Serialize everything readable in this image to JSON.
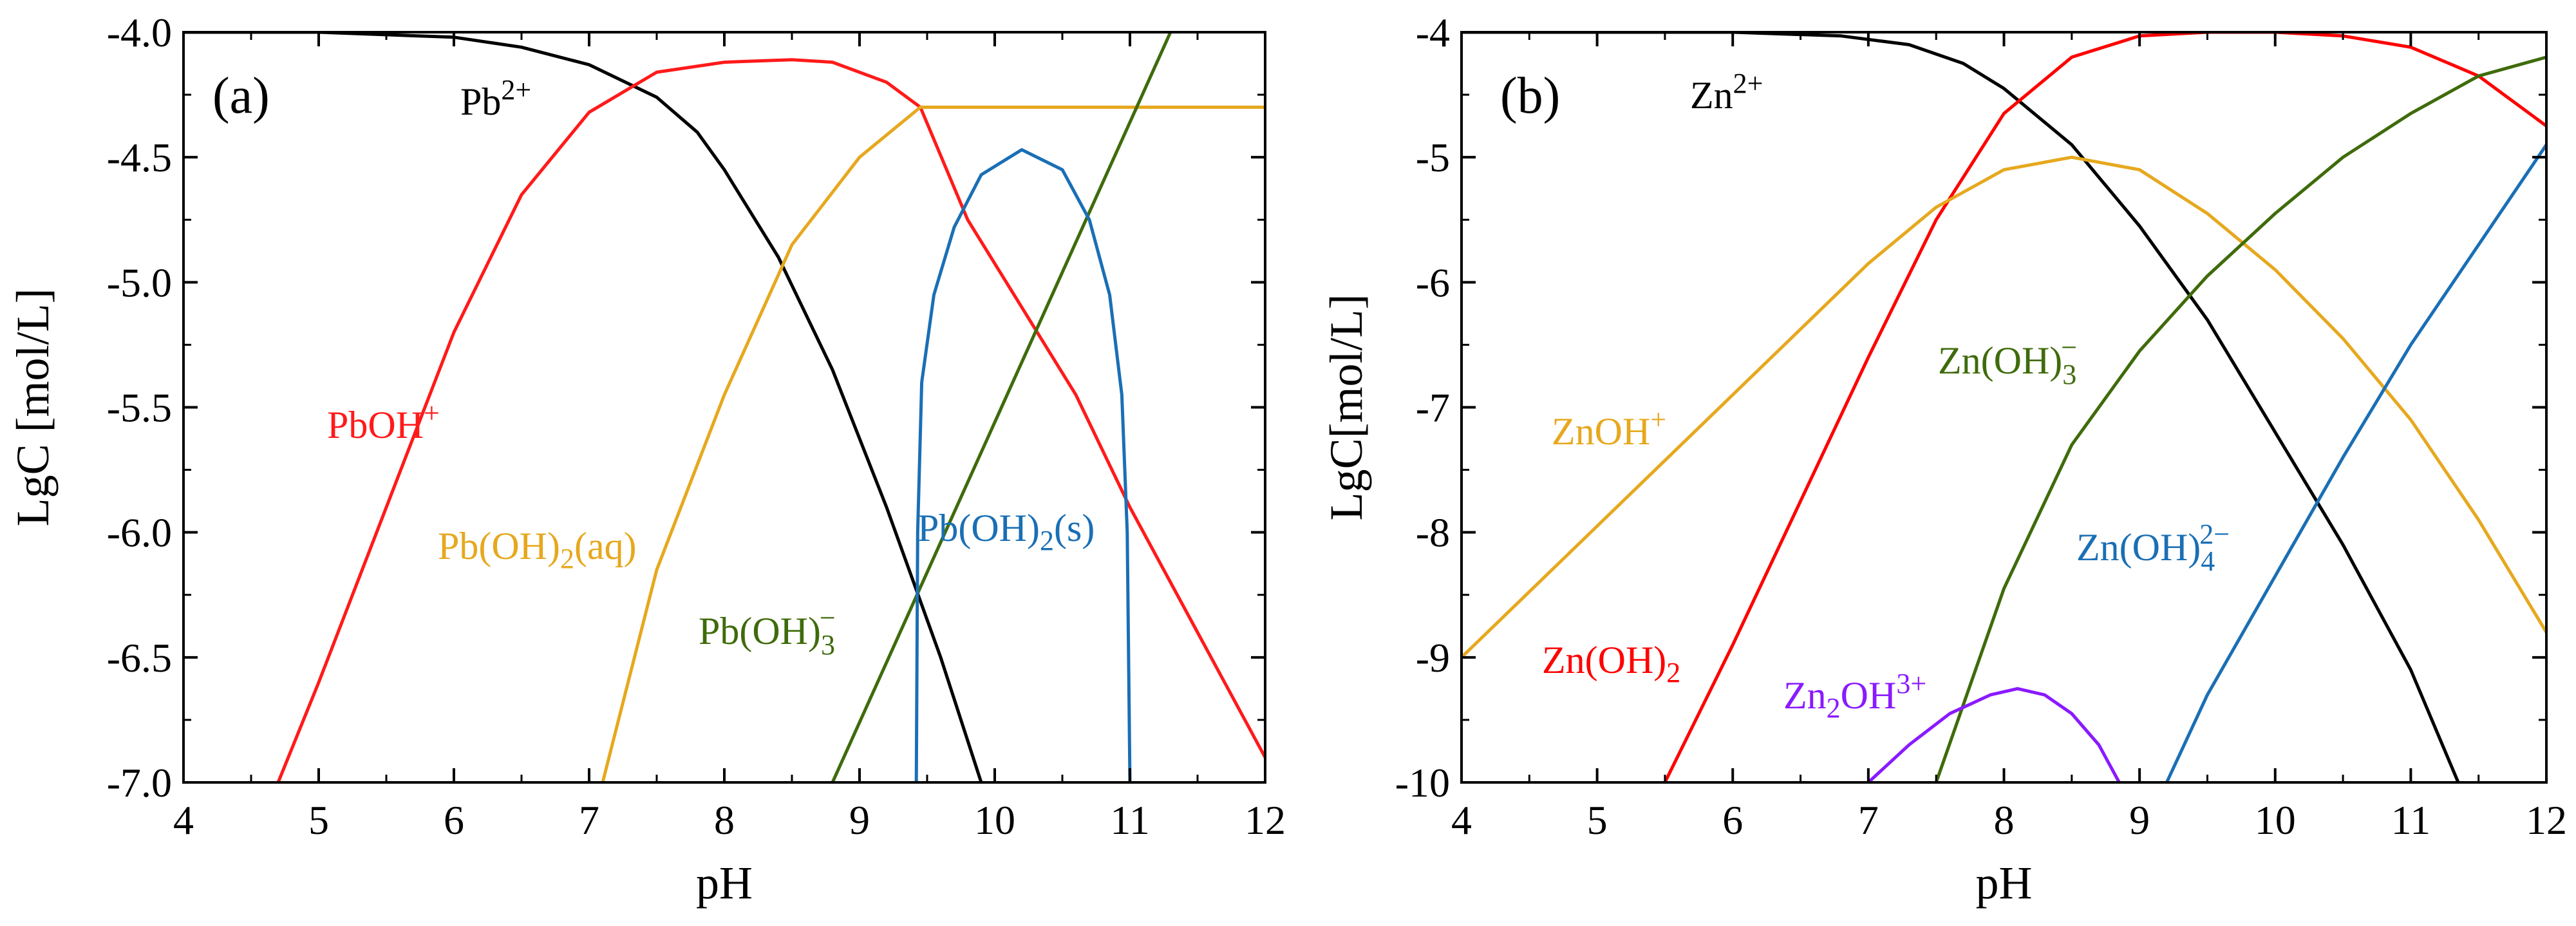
{
  "chart_data": [
    {
      "type": "line",
      "panel_label": "(a)",
      "xlabel": "pH",
      "ylabel": "LgC [mol/L]",
      "xlim": [
        4,
        12
      ],
      "ylim": [
        -7.0,
        -4.0
      ],
      "xticks": [
        4,
        5,
        6,
        7,
        8,
        9,
        10,
        11,
        12
      ],
      "xtick_labels": [
        "4",
        "5",
        "6",
        "7",
        "8",
        "9",
        "10",
        "11",
        "12"
      ],
      "yticks": [
        -4.0,
        -4.5,
        -5.0,
        -5.5,
        -6.0,
        -6.5,
        -7.0
      ],
      "ytick_labels": [
        "-4.0",
        "-4.5",
        "-5.0",
        "-5.5",
        "-6.0",
        "-6.5",
        "-7.0"
      ],
      "series": [
        {
          "key": "Pb2+",
          "name": "Pb²⁺",
          "label_parts": [
            "Pb",
            "2+"
          ],
          "label_style": "sup",
          "color": "#000000",
          "points": [
            [
              4.0,
              -4.0
            ],
            [
              5.0,
              -4.0
            ],
            [
              6.0,
              -4.02
            ],
            [
              6.5,
              -4.06
            ],
            [
              7.0,
              -4.13
            ],
            [
              7.5,
              -4.26
            ],
            [
              7.8,
              -4.4
            ],
            [
              8.0,
              -4.55
            ],
            [
              8.4,
              -4.9
            ],
            [
              8.8,
              -5.35
            ],
            [
              9.2,
              -5.9
            ],
            [
              9.6,
              -6.5
            ],
            [
              9.9,
              -7.0
            ]
          ]
        },
        {
          "key": "PbOH+",
          "name": "PbOH⁺",
          "label_parts": [
            "PbOH",
            "+"
          ],
          "label_style": "sup",
          "color": "#ff1a1a",
          "points": [
            [
              4.7,
              -7.0
            ],
            [
              5.0,
              -6.6
            ],
            [
              5.5,
              -5.9
            ],
            [
              6.0,
              -5.2
            ],
            [
              6.5,
              -4.65
            ],
            [
              7.0,
              -4.32
            ],
            [
              7.5,
              -4.16
            ],
            [
              8.0,
              -4.12
            ],
            [
              8.5,
              -4.11
            ],
            [
              8.8,
              -4.12
            ],
            [
              9.2,
              -4.2
            ],
            [
              9.45,
              -4.3
            ],
            [
              9.8,
              -4.75
            ],
            [
              10.2,
              -5.1
            ],
            [
              10.6,
              -5.45
            ],
            [
              11.0,
              -5.9
            ],
            [
              11.5,
              -6.4
            ],
            [
              12.0,
              -6.9
            ]
          ]
        },
        {
          "key": "Pb(OH)2(aq)",
          "name": "Pb(OH)₂(aq)",
          "label_parts": [
            "Pb(OH)",
            "2",
            "(aq)"
          ],
          "label_style": "sub-mid",
          "color": "#e6a81e",
          "points": [
            [
              7.1,
              -7.0
            ],
            [
              7.5,
              -6.15
            ],
            [
              8.0,
              -5.45
            ],
            [
              8.5,
              -4.85
            ],
            [
              9.0,
              -4.5
            ],
            [
              9.45,
              -4.3
            ],
            [
              10.0,
              -4.3
            ],
            [
              11.0,
              -4.3
            ],
            [
              12.0,
              -4.3
            ]
          ]
        },
        {
          "key": "Pb(OH)3-",
          "name": "Pb(OH)₃⁻",
          "label_parts": [
            "Pb(OH)",
            "3",
            "−"
          ],
          "label_style": "subsup",
          "color": "#3f6b0b",
          "points": [
            [
              8.8,
              -7.0
            ],
            [
              11.3,
              -4.0
            ]
          ]
        },
        {
          "key": "Pb(OH)2(s)",
          "name": "Pb(OH)₂(s)",
          "label_parts": [
            "Pb(OH)",
            "2",
            "(s)"
          ],
          "label_style": "sub-mid",
          "color": "#1a6fb5",
          "points": [
            [
              9.42,
              -7.0
            ],
            [
              9.43,
              -6.0
            ],
            [
              9.46,
              -5.4
            ],
            [
              9.55,
              -5.05
            ],
            [
              9.7,
              -4.78
            ],
            [
              9.9,
              -4.57
            ],
            [
              10.2,
              -4.47
            ],
            [
              10.5,
              -4.55
            ],
            [
              10.7,
              -4.75
            ],
            [
              10.85,
              -5.05
            ],
            [
              10.94,
              -5.45
            ],
            [
              10.98,
              -6.0
            ],
            [
              11.0,
              -7.0
            ]
          ]
        }
      ]
    },
    {
      "type": "line",
      "panel_label": "(b)",
      "xlabel": "pH",
      "ylabel": "LgC[mol/L]",
      "xlim": [
        4,
        12
      ],
      "ylim": [
        -10,
        -4
      ],
      "xticks": [
        4,
        5,
        6,
        7,
        8,
        9,
        10,
        11,
        12
      ],
      "xtick_labels": [
        "4",
        "5",
        "6",
        "7",
        "8",
        "9",
        "10",
        "11",
        "12"
      ],
      "yticks": [
        -4,
        -5,
        -6,
        -7,
        -8,
        -9,
        -10
      ],
      "ytick_labels": [
        "-4",
        "-5",
        "-6",
        "-7",
        "-8",
        "-9",
        "-10"
      ],
      "series": [
        {
          "key": "Zn2+",
          "name": "Zn²⁺",
          "label_parts": [
            "Zn",
            "2+"
          ],
          "label_style": "sup",
          "color": "#000000",
          "points": [
            [
              4.0,
              -4.0
            ],
            [
              6.0,
              -4.0
            ],
            [
              6.8,
              -4.03
            ],
            [
              7.3,
              -4.1
            ],
            [
              7.7,
              -4.25
            ],
            [
              8.0,
              -4.45
            ],
            [
              8.5,
              -4.9
            ],
            [
              9.0,
              -5.55
            ],
            [
              9.5,
              -6.3
            ],
            [
              10.0,
              -7.2
            ],
            [
              10.5,
              -8.1
            ],
            [
              11.0,
              -9.1
            ],
            [
              11.35,
              -10.0
            ]
          ]
        },
        {
          "key": "Zn(OH)2",
          "name": "Zn(OH)₂",
          "label_parts": [
            "Zn(OH)",
            "2"
          ],
          "label_style": "sub",
          "color": "#ff0000",
          "points": [
            [
              5.5,
              -10.0
            ],
            [
              6.0,
              -8.9
            ],
            [
              6.5,
              -7.75
            ],
            [
              7.0,
              -6.6
            ],
            [
              7.5,
              -5.5
            ],
            [
              8.0,
              -4.65
            ],
            [
              8.5,
              -4.2
            ],
            [
              9.0,
              -4.03
            ],
            [
              9.5,
              -4.0
            ],
            [
              10.0,
              -4.0
            ],
            [
              10.5,
              -4.03
            ],
            [
              11.0,
              -4.12
            ],
            [
              11.5,
              -4.35
            ],
            [
              12.0,
              -4.75
            ]
          ]
        },
        {
          "key": "ZnOH+",
          "name": "ZnOH⁺",
          "label_parts": [
            "ZnOH",
            "+"
          ],
          "label_style": "sup",
          "color": "#e6a81e",
          "points": [
            [
              4.0,
              -9.0
            ],
            [
              5.0,
              -7.95
            ],
            [
              6.0,
              -6.9
            ],
            [
              7.0,
              -5.85
            ],
            [
              7.5,
              -5.4
            ],
            [
              8.0,
              -5.1
            ],
            [
              8.5,
              -5.0
            ],
            [
              9.0,
              -5.1
            ],
            [
              9.5,
              -5.45
            ],
            [
              10.0,
              -5.9
            ],
            [
              10.5,
              -6.45
            ],
            [
              11.0,
              -7.1
            ],
            [
              11.5,
              -7.9
            ],
            [
              12.0,
              -8.8
            ]
          ]
        },
        {
          "key": "Zn(OH)3-",
          "name": "Zn(OH)₃⁻",
          "label_parts": [
            "Zn(OH)",
            "3",
            "−"
          ],
          "label_style": "subsup",
          "color": "#3f6b0b",
          "points": [
            [
              7.5,
              -10.0
            ],
            [
              8.0,
              -8.45
            ],
            [
              8.5,
              -7.3
            ],
            [
              9.0,
              -6.55
            ],
            [
              9.5,
              -5.95
            ],
            [
              10.0,
              -5.45
            ],
            [
              10.5,
              -5.0
            ],
            [
              11.0,
              -4.65
            ],
            [
              11.5,
              -4.35
            ],
            [
              12.0,
              -4.2
            ]
          ]
        },
        {
          "key": "Zn(OH)4 2-",
          "name": "Zn(OH)₄²⁻",
          "label_parts": [
            "Zn(OH)",
            "4",
            "2−"
          ],
          "label_style": "subsup",
          "color": "#1a6fb5",
          "points": [
            [
              9.2,
              -10.0
            ],
            [
              9.5,
              -9.3
            ],
            [
              10.0,
              -8.35
            ],
            [
              10.5,
              -7.4
            ],
            [
              11.0,
              -6.5
            ],
            [
              11.5,
              -5.7
            ],
            [
              12.0,
              -4.9
            ]
          ]
        },
        {
          "key": "Zn2OH3+",
          "name": "Zn₂OH³⁺",
          "label_parts": [
            "Zn",
            "2",
            "OH",
            "3+"
          ],
          "label_style": "zn2",
          "color": "#8a1aff",
          "points": [
            [
              7.0,
              -10.0
            ],
            [
              7.3,
              -9.7
            ],
            [
              7.6,
              -9.45
            ],
            [
              7.9,
              -9.3
            ],
            [
              8.1,
              -9.25
            ],
            [
              8.3,
              -9.3
            ],
            [
              8.5,
              -9.45
            ],
            [
              8.7,
              -9.7
            ],
            [
              8.85,
              -10.0
            ]
          ]
        }
      ]
    }
  ]
}
